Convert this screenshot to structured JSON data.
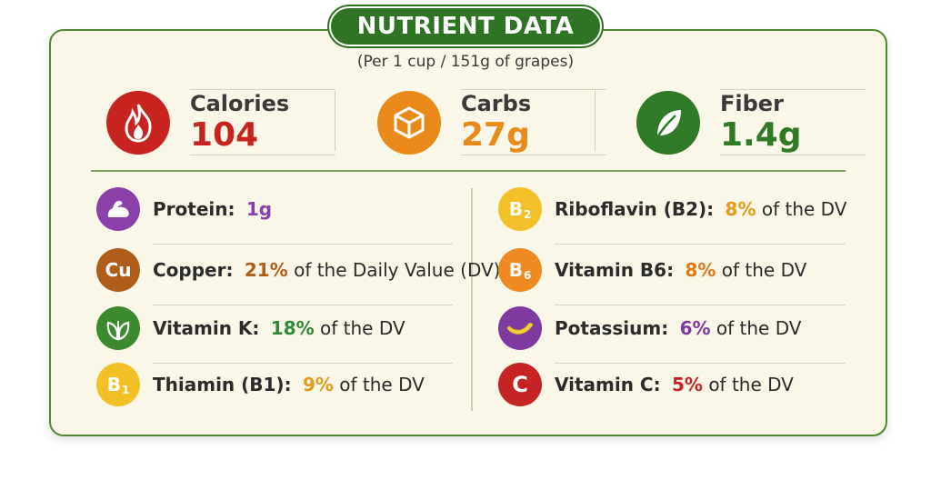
{
  "header": {
    "title": "NUTRIENT DATA",
    "subtitle": "(Per 1 cup / 151g of grapes)"
  },
  "stats": [
    {
      "label": "Calories",
      "value": "104",
      "icon": "flame-icon",
      "color": "#c8241f"
    },
    {
      "label": "Carbs",
      "value": "27g",
      "icon": "cube-icon",
      "color": "#e8891a"
    },
    {
      "label": "Fiber",
      "value": "1.4g",
      "icon": "leaf-icon",
      "color": "#2f7a26"
    }
  ],
  "left_items": [
    {
      "name": "Protein:",
      "pct": "1g",
      "rest": "",
      "badge": "muscle-icon",
      "badge_color": "#8b3fa8",
      "pct_color": "#8b3fa8"
    },
    {
      "name": "Copper:",
      "pct": "21%",
      "rest": "of the Daily Value (DV)",
      "badge_text": "Cu",
      "badge_color": "#b05d1a",
      "pct_color": "#b05d1a"
    },
    {
      "name": "Vitamin K:",
      "pct": "18%",
      "rest": "of the DV",
      "badge": "leaves-icon",
      "badge_color": "#3b8a2e",
      "pct_color": "#2e8a3a"
    },
    {
      "name": "Thiamin (B1):",
      "pct": "9%",
      "rest": "of the DV",
      "badge_text": "B",
      "badge_sub": "1",
      "badge_color": "#f2c024",
      "pct_color": "#e39b18"
    }
  ],
  "right_items": [
    {
      "name": "Riboflavin (B2):",
      "pct": "8%",
      "rest": "of the DV",
      "badge_text": "B",
      "badge_sub": "2",
      "badge_color": "#f4c02a",
      "pct_color": "#e39b18"
    },
    {
      "name": "Vitamin B6:",
      "pct": "8%",
      "rest": "of the DV",
      "badge_text": "B",
      "badge_sub": "6",
      "badge_color": "#ef8a22",
      "pct_color": "#e07a18"
    },
    {
      "name": "Potassium:",
      "pct": "6%",
      "rest": "of the DV",
      "badge": "banana-icon",
      "badge_color": "#7e3a9e",
      "pct_color": "#7e3a9e"
    },
    {
      "name": "Vitamin C:",
      "pct": "5%",
      "rest": "of the DV",
      "badge_text": "C",
      "badge_color": "#c42424",
      "pct_color": "#c42424"
    }
  ]
}
